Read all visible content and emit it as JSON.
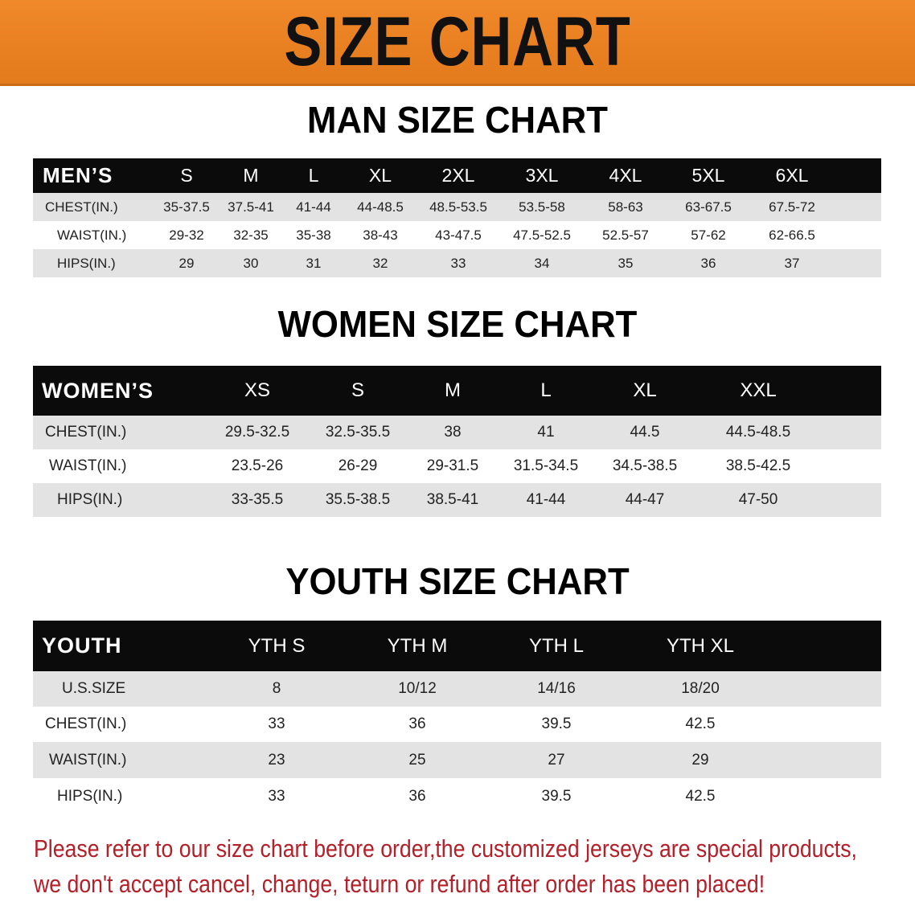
{
  "banner": {
    "title": "SIZE CHART",
    "color": "#e9821f"
  },
  "men": {
    "title": "MAN SIZE CHART",
    "header": [
      "MEN’S",
      "S",
      "M",
      "L",
      "XL",
      "2XL",
      "3XL",
      "4XL",
      "5XL",
      "6XL"
    ],
    "rows": [
      [
        "CHEST(IN.)",
        "35-37.5",
        "37.5-41",
        "41-44",
        "44-48.5",
        "48.5-53.5",
        "53.5-58",
        "58-63",
        "63-67.5",
        "67.5-72"
      ],
      [
        "WAIST(IN.)",
        "29-32",
        "32-35",
        "35-38",
        "38-43",
        "43-47.5",
        "47.5-52.5",
        "52.5-57",
        "57-62",
        "62-66.5"
      ],
      [
        "HIPS(IN.)",
        "29",
        "30",
        "31",
        "32",
        "33",
        "34",
        "35",
        "36",
        "37"
      ]
    ]
  },
  "women": {
    "title": "WOMEN SIZE CHART",
    "header": [
      "WOMEN’S",
      "XS",
      "S",
      "M",
      "L",
      "XL",
      "XXL"
    ],
    "rows": [
      [
        "CHEST(IN.)",
        "29.5-32.5",
        "32.5-35.5",
        "38",
        "41",
        "44.5",
        "44.5-48.5"
      ],
      [
        "WAIST(IN.)",
        "23.5-26",
        "26-29",
        "29-31.5",
        "31.5-34.5",
        "34.5-38.5",
        "38.5-42.5"
      ],
      [
        "HIPS(IN.)",
        "33-35.5",
        "35.5-38.5",
        "38.5-41",
        "41-44",
        "44-47",
        "47-50"
      ]
    ]
  },
  "youth": {
    "title": "YOUTH SIZE CHART",
    "header": [
      "YOUTH",
      "YTH S",
      "YTH M",
      "YTH L",
      "YTH XL"
    ],
    "rows": [
      [
        "U.S.SIZE",
        "8",
        "10/12",
        "14/16",
        "18/20"
      ],
      [
        "CHEST(IN.)",
        "33",
        "36",
        "39.5",
        "42.5"
      ],
      [
        "WAIST(IN.)",
        "23",
        "25",
        "27",
        "29"
      ],
      [
        "HIPS(IN.)",
        "33",
        "36",
        "39.5",
        "42.5"
      ]
    ]
  },
  "notice": {
    "line1": "Please refer to our size chart before order,the customized jerseys are special products,",
    "line2": "we don't accept cancel, change, teturn or refund after order has been placed!",
    "color": "#b3202a"
  }
}
